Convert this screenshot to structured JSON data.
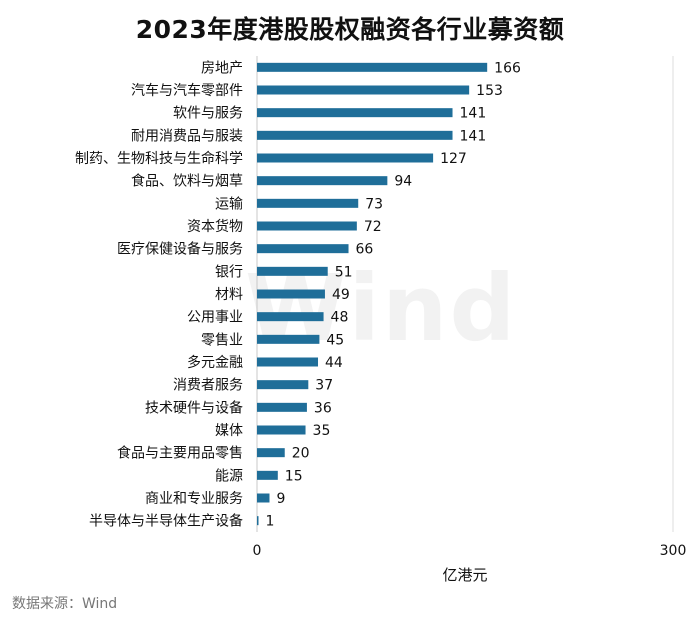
{
  "chart_data": {
    "type": "bar",
    "orientation": "horizontal",
    "title": "2023年度港股股权融资各行业募资额",
    "xlabel": "亿港元",
    "xlim": [
      0,
      300
    ],
    "xticks": [
      "0",
      "300"
    ],
    "bar_color": "#1f6e99",
    "categories": [
      "房地产",
      "汽车与汽车零部件",
      "软件与服务",
      "耐用消费品与服装",
      "制药、生物科技与生命科学",
      "食品、饮料与烟草",
      "运输",
      "资本货物",
      "医疗保健设备与服务",
      "银行",
      "材料",
      "公用事业",
      "零售业",
      "多元金融",
      "消费者服务",
      "技术硬件与设备",
      "媒体",
      "食品与主要用品零售",
      "能源",
      "商业和专业服务",
      "半导体与半导体生产设备"
    ],
    "values": [
      166,
      153,
      141,
      141,
      127,
      94,
      73,
      72,
      66,
      51,
      49,
      48,
      45,
      44,
      37,
      36,
      35,
      20,
      15,
      9,
      1
    ],
    "watermark": "Wind"
  },
  "source": "数据来源：Wind"
}
